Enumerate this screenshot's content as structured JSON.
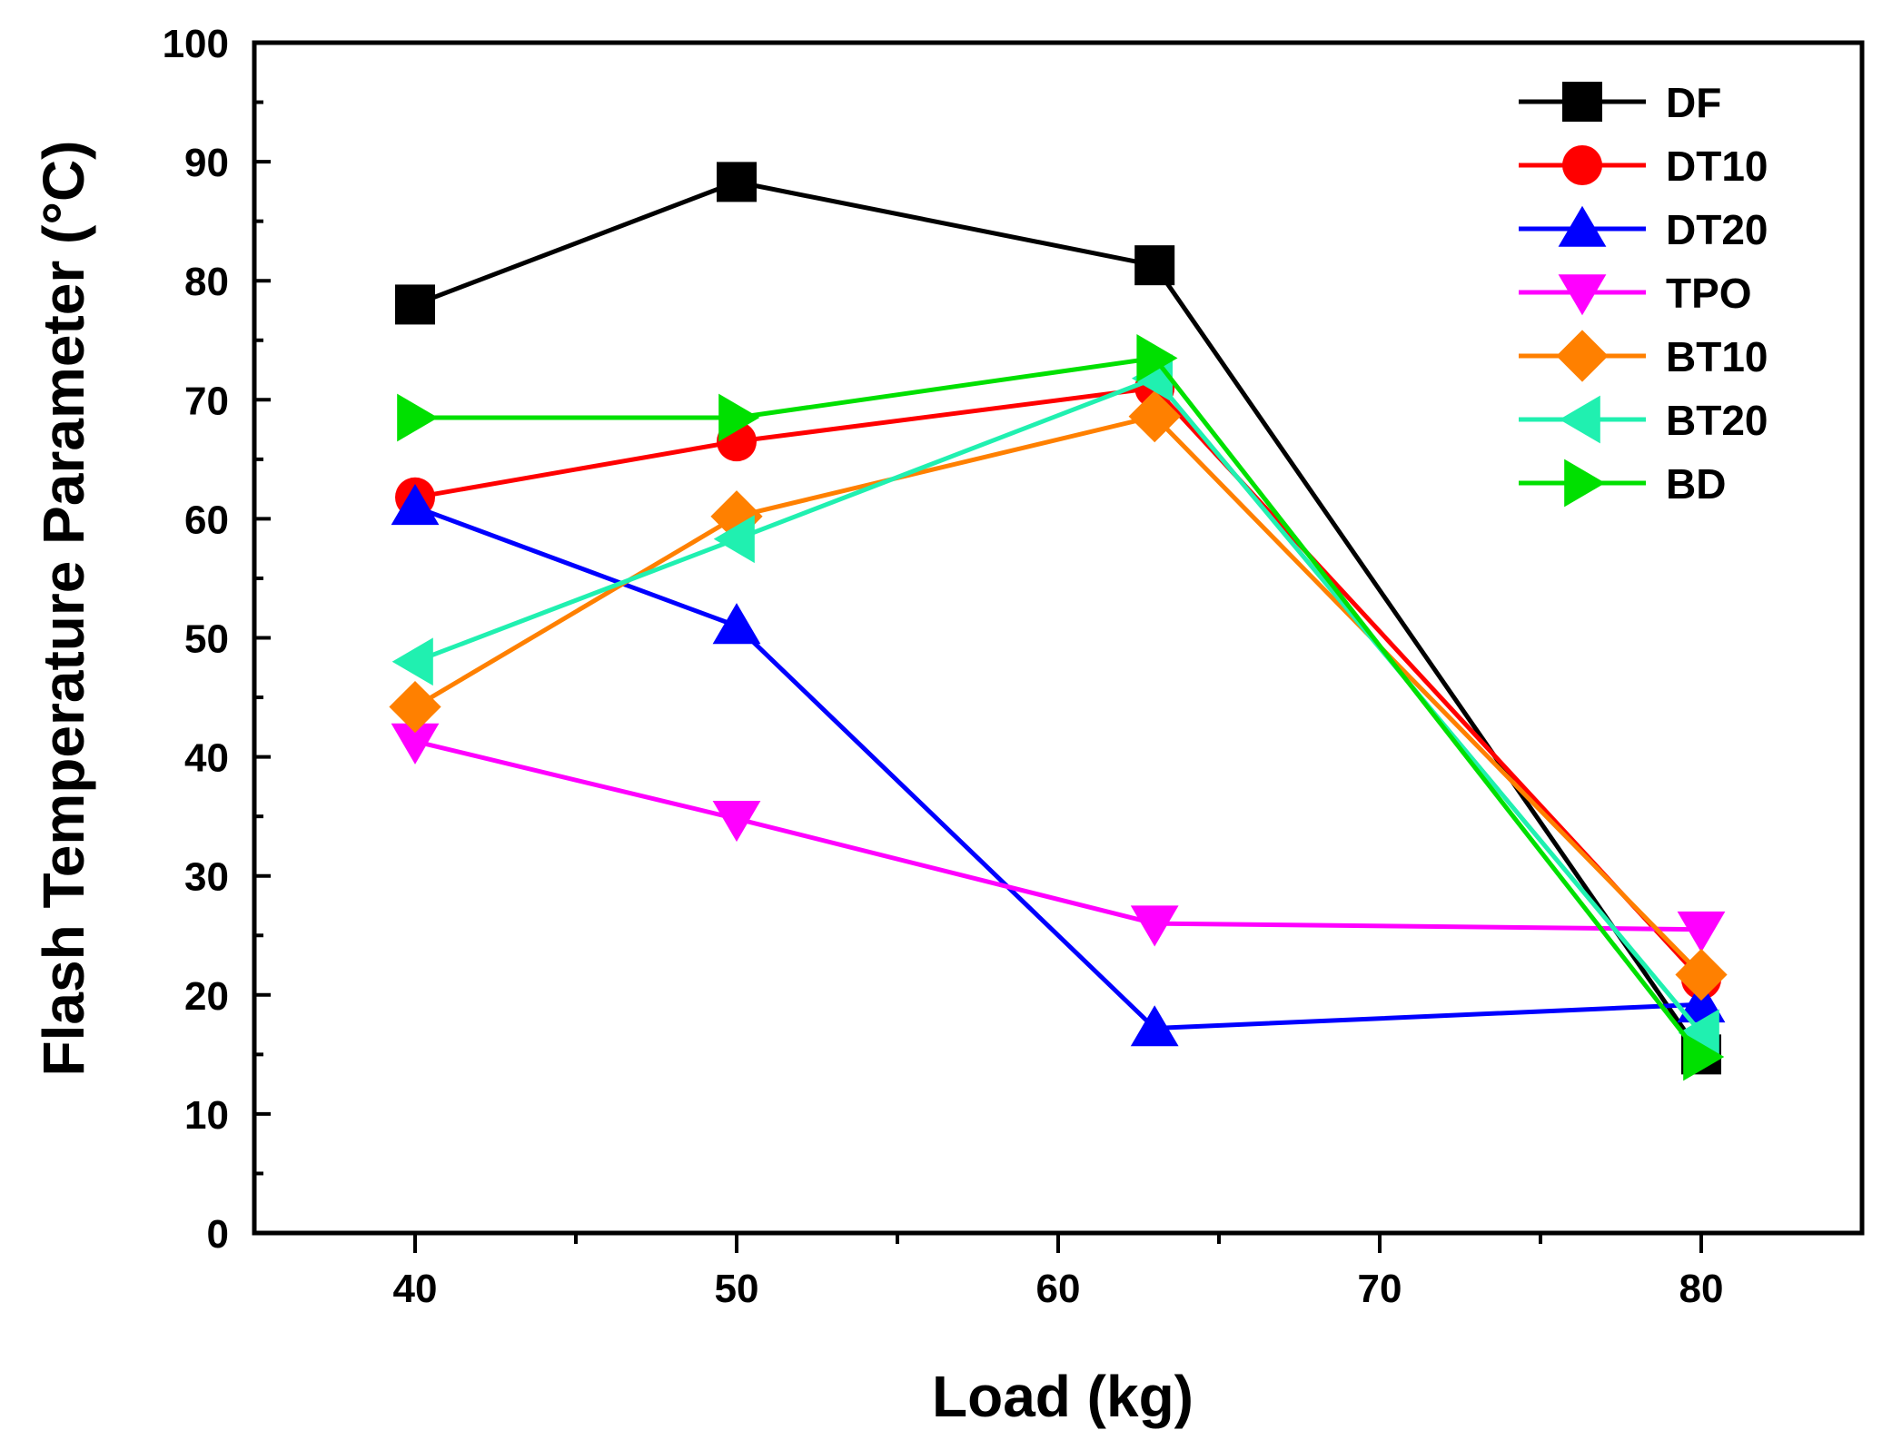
{
  "chart_data": {
    "type": "line",
    "xlabel": "Load (kg)",
    "ylabel": "Flash Temperature Parameter (°C)",
    "xlim": [
      35,
      85
    ],
    "ylim": [
      0,
      100
    ],
    "xticks": [
      40,
      50,
      60,
      70,
      80
    ],
    "yticks": [
      0,
      10,
      20,
      30,
      40,
      50,
      60,
      70,
      80,
      90,
      100
    ],
    "grid": false,
    "legend_position": "top-right",
    "x": [
      40,
      50,
      63,
      80
    ],
    "series": [
      {
        "name": "DF",
        "color": "#000000",
        "marker": "square",
        "values": [
          78.0,
          88.3,
          81.3,
          15.0
        ]
      },
      {
        "name": "DT10",
        "color": "#ff0000",
        "marker": "circle",
        "values": [
          61.8,
          66.5,
          71.0,
          21.3
        ]
      },
      {
        "name": "DT20",
        "color": "#0000ff",
        "marker": "triangle-up",
        "values": [
          61.0,
          51.0,
          17.2,
          19.2
        ]
      },
      {
        "name": "TPO",
        "color": "#ff00ff",
        "marker": "triangle-down",
        "values": [
          41.3,
          34.8,
          26.0,
          25.5
        ]
      },
      {
        "name": "BT10",
        "color": "#ff8000",
        "marker": "diamond",
        "values": [
          44.2,
          60.2,
          68.6,
          21.7
        ]
      },
      {
        "name": "BT20",
        "color": "#20f0b0",
        "marker": "triangle-left",
        "values": [
          48.0,
          58.3,
          71.8,
          16.8
        ]
      },
      {
        "name": "BD",
        "color": "#00e000",
        "marker": "triangle-right",
        "values": [
          68.5,
          68.5,
          73.5,
          14.8
        ]
      }
    ]
  }
}
